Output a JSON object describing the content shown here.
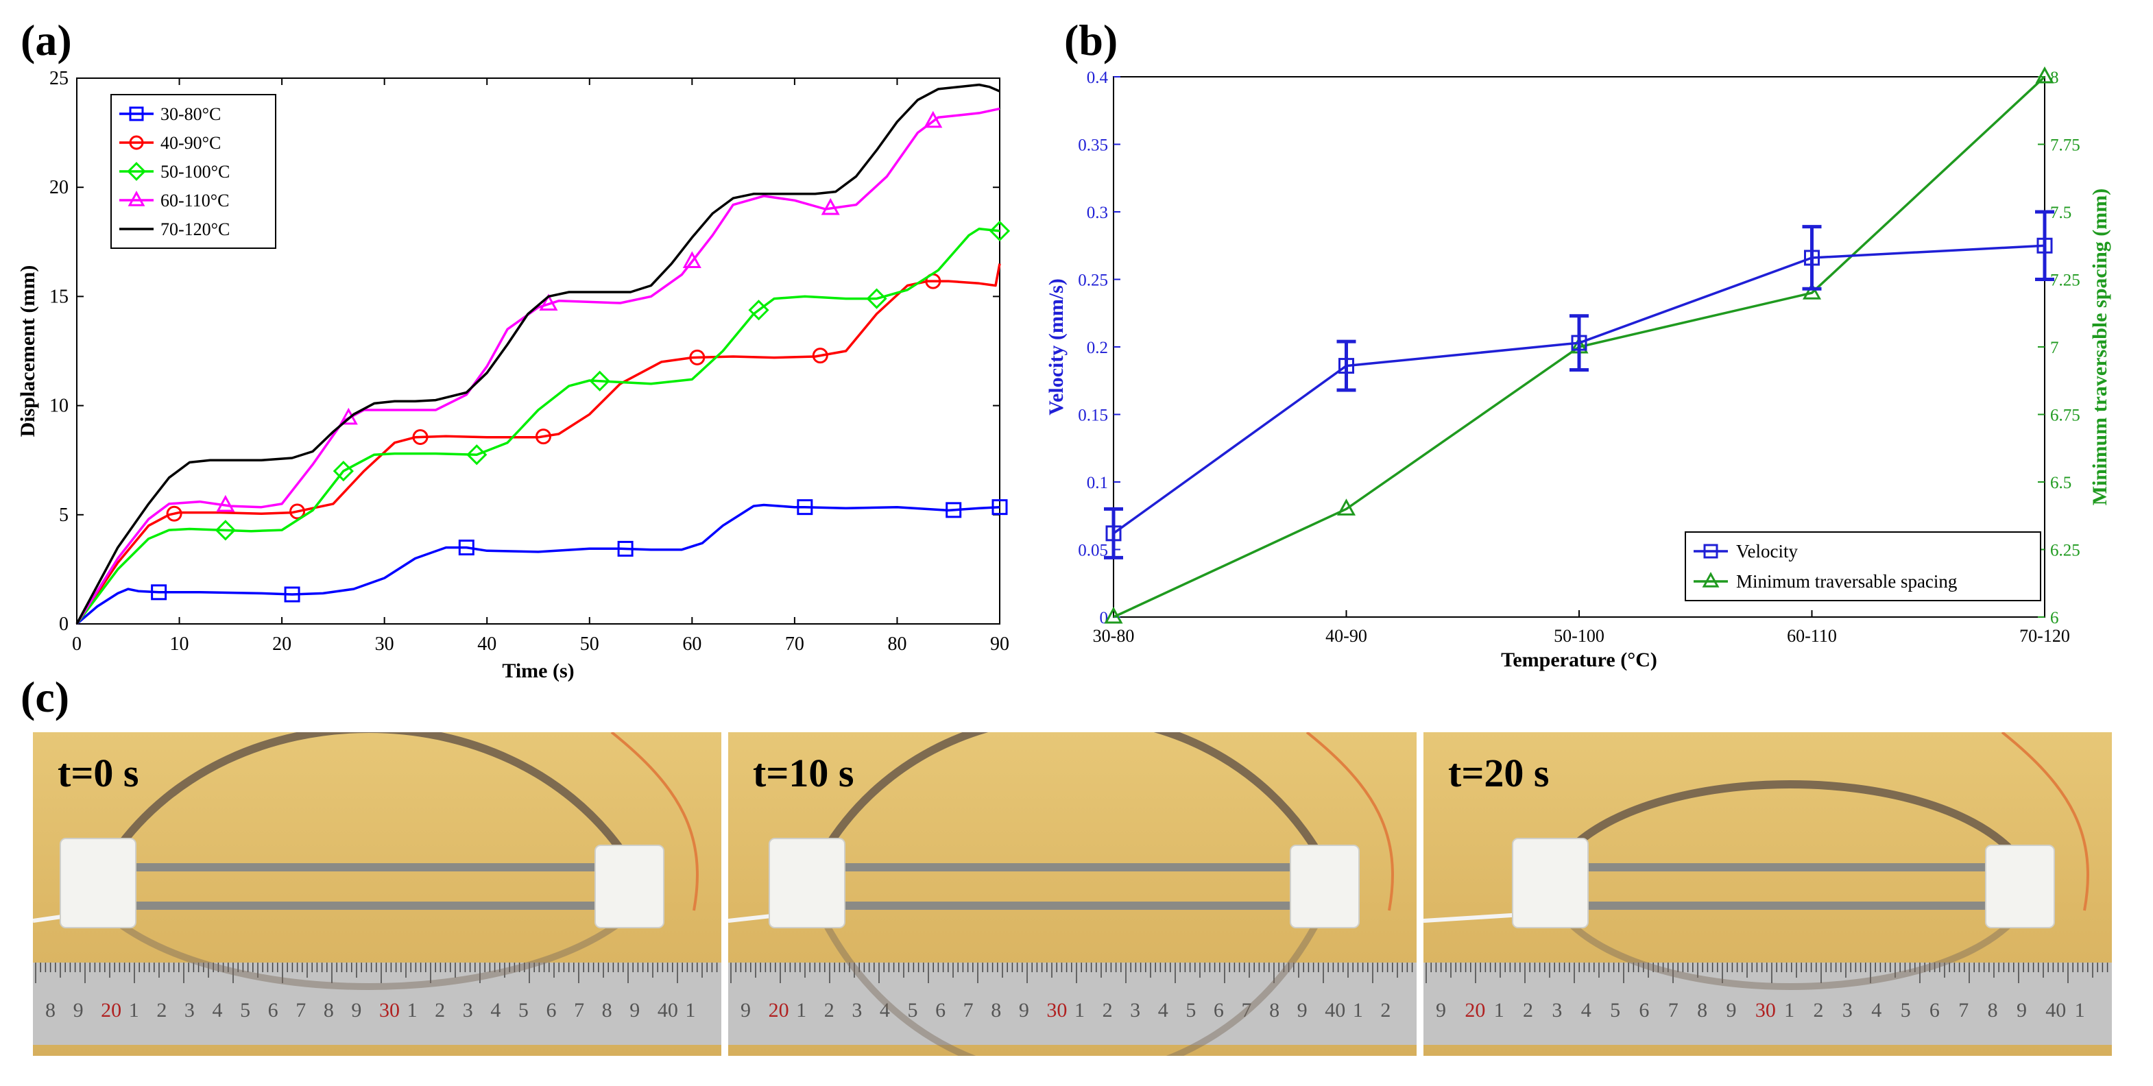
{
  "panels": {
    "a": "(a)",
    "b": "(b)",
    "c": "(c)"
  },
  "colors": {
    "s30_80": "#0000ff",
    "s40_90": "#ff0000",
    "s50_100": "#00ee00",
    "s60_110": "#ff00ff",
    "s70_120": "#000000",
    "velocity": "#1f1fd6",
    "spacing": "#1f9a1f"
  },
  "chart_data": [
    {
      "type": "line",
      "title": "",
      "xlabel": "Time (s)",
      "ylabel": "Displacement (mm)",
      "xlim": [
        0,
        90
      ],
      "ylim": [
        0,
        25
      ],
      "xticks": [
        "0",
        "10",
        "20",
        "30",
        "40",
        "50",
        "60",
        "70",
        "80",
        "90"
      ],
      "yticks": [
        "0",
        "5",
        "10",
        "15",
        "20",
        "25"
      ],
      "legend_position": "top-left",
      "series": [
        {
          "name": "30-80°C",
          "color": "#0000ff",
          "marker": "square",
          "x": [
            0,
            2,
            4,
            5,
            6,
            8,
            12,
            18,
            21,
            24,
            27,
            30,
            33,
            36,
            38,
            40,
            45,
            50,
            53,
            56,
            59,
            61,
            63,
            66,
            67,
            70,
            71,
            75,
            80,
            85,
            88,
            90
          ],
          "y": [
            0,
            0.8,
            1.4,
            1.6,
            1.5,
            1.45,
            1.45,
            1.4,
            1.35,
            1.4,
            1.6,
            2.1,
            3.0,
            3.5,
            3.5,
            3.35,
            3.3,
            3.45,
            3.45,
            3.4,
            3.4,
            3.7,
            4.5,
            5.4,
            5.45,
            5.35,
            5.35,
            5.3,
            5.35,
            5.2,
            5.3,
            5.35
          ],
          "marker_x": [
            8,
            21,
            38,
            53.5,
            71,
            85.5,
            90
          ]
        },
        {
          "name": "40-90°C",
          "color": "#ff0000",
          "marker": "circle",
          "x": [
            0,
            4,
            7,
            9,
            10,
            14,
            18,
            21,
            25,
            28,
            31,
            33,
            36,
            40,
            45,
            47,
            50,
            53,
            57,
            60,
            64,
            68,
            72,
            75,
            78,
            81,
            83,
            85,
            88,
            89.6,
            90
          ],
          "y": [
            0,
            2.8,
            4.5,
            5.0,
            5.1,
            5.1,
            5.05,
            5.1,
            5.5,
            7.0,
            8.3,
            8.55,
            8.6,
            8.55,
            8.55,
            8.7,
            9.6,
            11.0,
            12.0,
            12.2,
            12.25,
            12.2,
            12.25,
            12.5,
            14.2,
            15.5,
            15.7,
            15.7,
            15.6,
            15.5,
            16.5
          ],
          "marker_x": [
            9.5,
            21.5,
            33.5,
            45.5,
            60.5,
            72.5,
            83.5
          ]
        },
        {
          "name": "50-100°C",
          "color": "#00ee00",
          "marker": "diamond",
          "x": [
            0,
            4,
            7,
            9,
            11,
            14,
            17,
            20,
            23,
            26,
            29,
            31,
            35,
            39,
            42,
            45,
            48,
            50,
            52,
            56,
            60,
            63,
            66,
            68,
            71,
            75,
            78,
            81,
            84,
            87,
            88,
            90
          ],
          "y": [
            0,
            2.5,
            3.9,
            4.3,
            4.35,
            4.3,
            4.25,
            4.3,
            5.2,
            7.0,
            7.75,
            7.8,
            7.8,
            7.75,
            8.3,
            9.8,
            10.9,
            11.15,
            11.1,
            11.0,
            11.2,
            12.5,
            14.2,
            14.9,
            15.0,
            14.9,
            14.9,
            15.3,
            16.2,
            17.8,
            18.1,
            18.0
          ],
          "marker_x": [
            14.5,
            26,
            39,
            51,
            66.5,
            78,
            90
          ]
        },
        {
          "name": "60-110°C",
          "color": "#ff00ff",
          "marker": "triangle",
          "x": [
            0,
            4,
            7,
            9,
            12,
            15,
            18,
            20,
            23,
            26,
            28,
            31,
            35,
            38,
            40,
            42,
            45,
            47,
            50,
            53,
            56,
            59,
            62,
            64,
            67,
            70,
            73,
            76,
            79,
            82,
            84,
            86,
            88,
            90
          ],
          "y": [
            0,
            3,
            4.8,
            5.5,
            5.6,
            5.4,
            5.35,
            5.5,
            7.3,
            9.3,
            9.8,
            9.8,
            9.8,
            10.5,
            11.8,
            13.5,
            14.5,
            14.8,
            14.75,
            14.7,
            15.0,
            16.0,
            17.8,
            19.2,
            19.6,
            19.4,
            19.0,
            19.2,
            20.5,
            22.5,
            23.2,
            23.3,
            23.4,
            23.6
          ],
          "marker_x": [
            14.5,
            26.5,
            46,
            60,
            73.5,
            83.5
          ]
        },
        {
          "name": "70-120°C",
          "color": "#000000",
          "marker": "none",
          "x": [
            0,
            4,
            7,
            9,
            11,
            13,
            15,
            18,
            21,
            23,
            25,
            27,
            29,
            31,
            33,
            35,
            38,
            40,
            42,
            44,
            46,
            48,
            51,
            54,
            56,
            58,
            60,
            62,
            64,
            66,
            69,
            72,
            74,
            76,
            78,
            80,
            82,
            84,
            86,
            88,
            89,
            90
          ],
          "y": [
            0,
            3.5,
            5.5,
            6.7,
            7.4,
            7.5,
            7.5,
            7.5,
            7.6,
            7.9,
            8.8,
            9.6,
            10.1,
            10.2,
            10.2,
            10.25,
            10.6,
            11.5,
            12.8,
            14.2,
            15.0,
            15.2,
            15.2,
            15.2,
            15.5,
            16.5,
            17.7,
            18.8,
            19.5,
            19.7,
            19.7,
            19.7,
            19.8,
            20.5,
            21.7,
            23.0,
            24.0,
            24.5,
            24.6,
            24.7,
            24.6,
            24.4
          ]
        }
      ]
    },
    {
      "type": "line",
      "title": "",
      "xlabel": "Temperature (°C)",
      "ylabel": "Velocity (mm/s)",
      "y2label": "Minimum traversable spacing (mm)",
      "categories": [
        "30-80",
        "40-90",
        "50-100",
        "60-110",
        "70-120"
      ],
      "ylim": [
        0,
        0.4
      ],
      "y2lim": [
        6,
        8
      ],
      "yticks": [
        "0",
        "0.05",
        "0.1",
        "0.15",
        "0.2",
        "0.25",
        "0.3",
        "0.35",
        "0.4"
      ],
      "y2ticks": [
        "6",
        "6.25",
        "6.5",
        "6.75",
        "7",
        "7.25",
        "7.5",
        "7.75",
        "8"
      ],
      "legend_position": "bottom-right",
      "series": [
        {
          "name": "Velocity",
          "axis": "left",
          "color": "#1f1fd6",
          "marker": "square",
          "values": [
            0.062,
            0.186,
            0.203,
            0.266,
            0.275
          ],
          "errors": [
            0.018,
            0.018,
            0.02,
            0.023,
            0.025
          ]
        },
        {
          "name": "Minimum traversable spacing",
          "axis": "right",
          "color": "#1f9a1f",
          "marker": "triangle",
          "values": [
            6.0,
            6.4,
            7.0,
            7.2,
            8.0
          ]
        }
      ]
    }
  ],
  "photos": [
    {
      "label": "t=0 s",
      "ruler": [
        "8",
        "9",
        "20",
        "1",
        "2",
        "3",
        "4",
        "5",
        "6",
        "7",
        "8",
        "9",
        "30",
        "1",
        "2",
        "3",
        "4",
        "5",
        "6",
        "7",
        "8",
        "9",
        "40",
        "1"
      ]
    },
    {
      "label": "t=10 s",
      "ruler": [
        "9",
        "20",
        "1",
        "2",
        "3",
        "4",
        "5",
        "6",
        "7",
        "8",
        "9",
        "30",
        "1",
        "2",
        "3",
        "4",
        "5",
        "6",
        "7",
        "8",
        "9",
        "40",
        "1",
        "2"
      ]
    },
    {
      "label": "t=20 s",
      "ruler": [
        "9",
        "20",
        "1",
        "2",
        "3",
        "4",
        "5",
        "6",
        "7",
        "8",
        "9",
        "30",
        "1",
        "2",
        "3",
        "4",
        "5",
        "6",
        "7",
        "8",
        "9",
        "40",
        "1"
      ]
    }
  ]
}
